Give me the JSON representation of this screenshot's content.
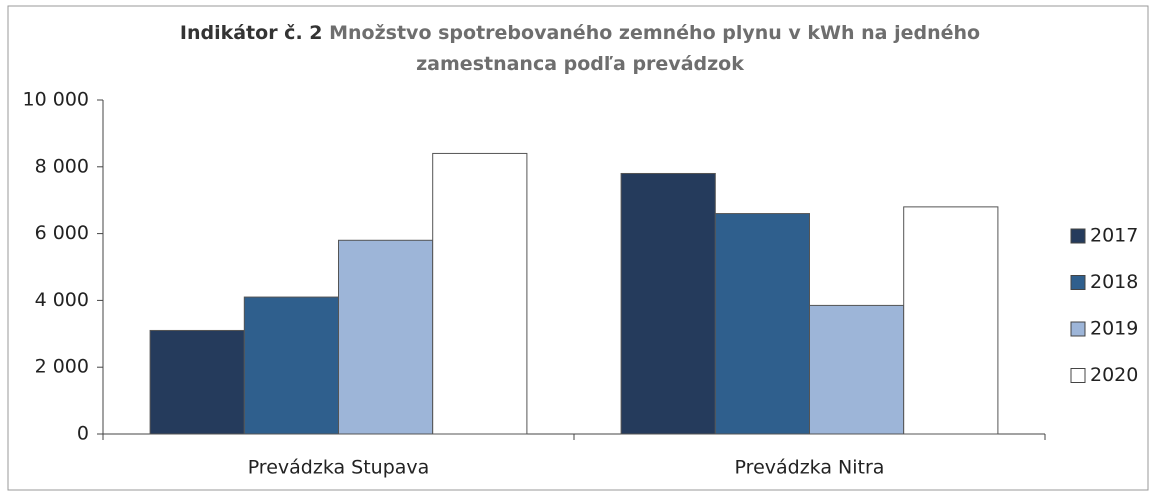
{
  "chart_data": {
    "type": "bar",
    "title_label": "Indikátor č. 2",
    "title": "Množstvo spotrebovaného zemného plynu v kWh na jedného zamestnanca podľa prevádzok",
    "categories": [
      "Prevádzka Stupava",
      "Prevádzka Nitra"
    ],
    "series": [
      {
        "name": "2017",
        "color": "#253b5c",
        "values": [
          3100,
          7800
        ]
      },
      {
        "name": "2018",
        "color": "#2f5f8d",
        "values": [
          4100,
          6600
        ]
      },
      {
        "name": "2019",
        "color": "#9db5d8",
        "values": [
          5800,
          3850
        ]
      },
      {
        "name": "2020",
        "color": "#ffffff",
        "values": [
          8400,
          6800
        ]
      }
    ],
    "ylim": [
      0,
      10000
    ],
    "yticks": [
      0,
      {
        "value": 2000,
        "label": "2 000"
      },
      {
        "value": 4000,
        "label": "4 000"
      },
      {
        "value": 6000,
        "label": "6 000"
      },
      {
        "value": 8000,
        "label": "8 000"
      },
      {
        "value": 10000,
        "label": "10 000"
      }
    ],
    "legend": "right"
  }
}
